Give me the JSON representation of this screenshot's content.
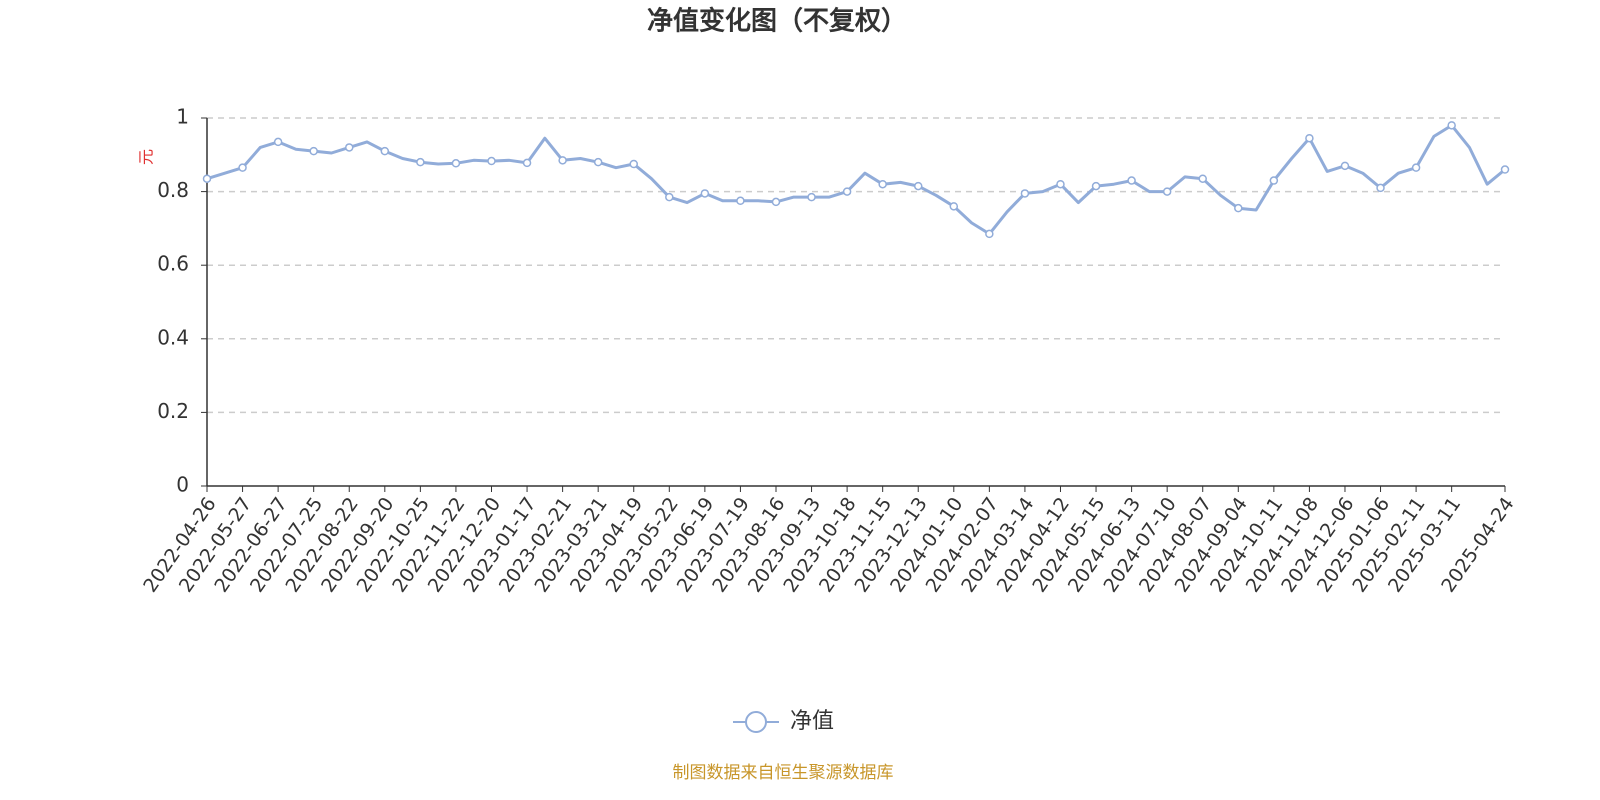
{
  "chart_data": {
    "type": "line",
    "title": "净值变化图（不复权）",
    "y_label": "元",
    "footer": "制图数据来自恒生聚源数据库",
    "categories": [
      "2022-04-26",
      null,
      "2022-05-27",
      null,
      "2022-06-27",
      null,
      "2022-07-25",
      null,
      "2022-08-22",
      null,
      "2022-09-20",
      null,
      "2022-10-25",
      null,
      "2022-11-22",
      null,
      "2022-12-20",
      null,
      "2023-01-17",
      null,
      "2023-02-21",
      null,
      "2023-03-21",
      null,
      "2023-04-19",
      null,
      "2023-05-22",
      null,
      "2023-06-19",
      null,
      "2023-07-19",
      null,
      "2023-08-16",
      null,
      "2023-09-13",
      null,
      "2023-10-18",
      null,
      "2023-11-15",
      null,
      "2023-12-13",
      null,
      "2024-01-10",
      null,
      "2024-02-07",
      null,
      "2024-03-14",
      null,
      "2024-04-12",
      null,
      "2024-05-15",
      null,
      "2024-06-13",
      null,
      "2024-07-10",
      null,
      "2024-08-07",
      null,
      "2024-09-04",
      null,
      "2024-10-11",
      null,
      "2024-11-08",
      null,
      "2024-12-06",
      null,
      "2025-01-06",
      null,
      "2025-02-11",
      null,
      "2025-03-11",
      null,
      null,
      "2025-04-24"
    ],
    "series": [
      {
        "name": "净值",
        "color": "#91acd9",
        "values": [
          0.835,
          0.85,
          0.865,
          0.92,
          0.935,
          0.915,
          0.91,
          0.905,
          0.92,
          0.935,
          0.91,
          0.89,
          0.88,
          0.875,
          0.877,
          0.885,
          0.883,
          0.885,
          0.878,
          0.945,
          0.885,
          0.89,
          0.88,
          0.865,
          0.875,
          0.835,
          0.785,
          0.77,
          0.795,
          0.775,
          0.775,
          0.775,
          0.772,
          0.785,
          0.785,
          0.785,
          0.8,
          0.85,
          0.82,
          0.825,
          0.815,
          0.79,
          0.76,
          0.715,
          0.685,
          0.745,
          0.795,
          0.8,
          0.82,
          0.77,
          0.815,
          0.82,
          0.83,
          0.8,
          0.8,
          0.84,
          0.835,
          0.79,
          0.755,
          0.75,
          0.83,
          0.89,
          0.945,
          0.855,
          0.87,
          0.85,
          0.81,
          0.85,
          0.865,
          0.95,
          0.98,
          0.92,
          0.82,
          0.86
        ]
      }
    ],
    "ylim": [
      0,
      1
    ],
    "yticks": [
      0,
      0.2,
      0.4,
      0.6,
      0.8,
      1
    ],
    "grid": true
  }
}
